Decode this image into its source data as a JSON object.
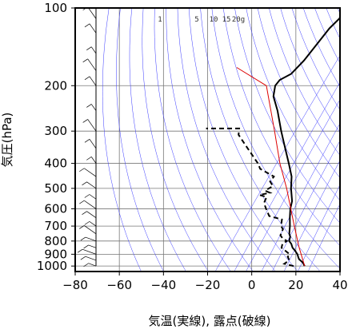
{
  "chart_data": {
    "type": "line",
    "title": "",
    "xlabel": "気温(実線), 露点(破線)",
    "ylabel": "気圧(hPa)",
    "xlim": [
      -80,
      40
    ],
    "ylim": [
      1050,
      100
    ],
    "y_scale": "log",
    "x_ticks": [
      -80,
      -60,
      -40,
      -20,
      0,
      20,
      40
    ],
    "x_tick_labels": [
      "−80",
      "−60",
      "−40",
      "−20",
      "0",
      "20",
      "40"
    ],
    "y_ticks": [
      100,
      200,
      300,
      400,
      500,
      600,
      700,
      800,
      900,
      1000
    ],
    "y_tick_labels": [
      "100",
      "200",
      "300",
      "400",
      "500",
      "600",
      "700",
      "800",
      "900",
      "1000"
    ],
    "mixing_ratio_labels": [
      "1",
      "5",
      "10",
      "15",
      "20g"
    ],
    "grid": true,
    "colors": {
      "temperature": "#000000",
      "dewpoint": "#000000",
      "parcel": "#dd0000",
      "dry_adiabats": "#3a3aff",
      "mixing_ratio": "#3a3aff",
      "grid": "#777777",
      "wind_barbs": "#000000"
    },
    "series": [
      {
        "style": "solid",
        "points": [
          [
            1000,
            22
          ],
          [
            970,
            20
          ],
          [
            940,
            17
          ],
          [
            925,
            16
          ],
          [
            900,
            14.5
          ],
          [
            870,
            12
          ],
          [
            850,
            10
          ],
          [
            820,
            8
          ],
          [
            800,
            6
          ],
          [
            770,
            5
          ],
          [
            750,
            3.5
          ],
          [
            700,
            1
          ],
          [
            650,
            -2
          ],
          [
            600,
            -5
          ],
          [
            560,
            -7
          ],
          [
            500,
            -12
          ],
          [
            450,
            -16
          ],
          [
            400,
            -22
          ],
          [
            350,
            -29
          ],
          [
            300,
            -37
          ],
          [
            250,
            -46
          ],
          [
            220,
            -53
          ],
          [
            200,
            -56
          ],
          [
            190,
            -56
          ],
          [
            180,
            -53
          ],
          [
            160,
            -52
          ],
          [
            140,
            -52
          ],
          [
            120,
            -52
          ],
          [
            110,
            -51
          ],
          [
            100,
            -52
          ]
        ]
      },
      {
        "style": "dashed",
        "points": [
          [
            1000,
            17
          ],
          [
            980,
            12
          ],
          [
            950,
            13
          ],
          [
            920,
            11
          ],
          [
            900,
            11
          ],
          [
            870,
            7.5
          ],
          [
            850,
            5
          ],
          [
            820,
            4
          ],
          [
            800,
            5
          ],
          [
            780,
            2
          ],
          [
            760,
            0
          ],
          [
            720,
            -1
          ],
          [
            700,
            -3
          ],
          [
            660,
            -5
          ],
          [
            640,
            -12
          ],
          [
            600,
            -16
          ],
          [
            570,
            -19
          ],
          [
            540,
            -20
          ],
          [
            530,
            -24
          ],
          [
            520,
            -20
          ],
          [
            510,
            -23
          ],
          [
            490,
            -21
          ],
          [
            470,
            -24
          ],
          [
            450,
            -24
          ],
          [
            420,
            -33
          ],
          [
            400,
            -36
          ],
          [
            350,
            -46
          ],
          [
            310,
            -55
          ],
          [
            293,
            -57
          ],
          [
            293,
            -72
          ]
        ]
      },
      {
        "style": "solid-red",
        "points": [
          [
            1000,
            22
          ],
          [
            850,
            13
          ],
          [
            700,
            3
          ],
          [
            500,
            -14
          ],
          [
            400,
            -26
          ],
          [
            300,
            -40
          ],
          [
            200,
            -60
          ],
          [
            170,
            -80
          ]
        ]
      }
    ],
    "wind_profile_levels": [
      1000,
      950,
      900,
      850,
      800,
      750,
      700,
      650,
      600,
      550,
      500,
      450,
      400,
      350,
      300,
      250,
      200,
      175,
      150,
      125,
      110,
      100
    ]
  }
}
